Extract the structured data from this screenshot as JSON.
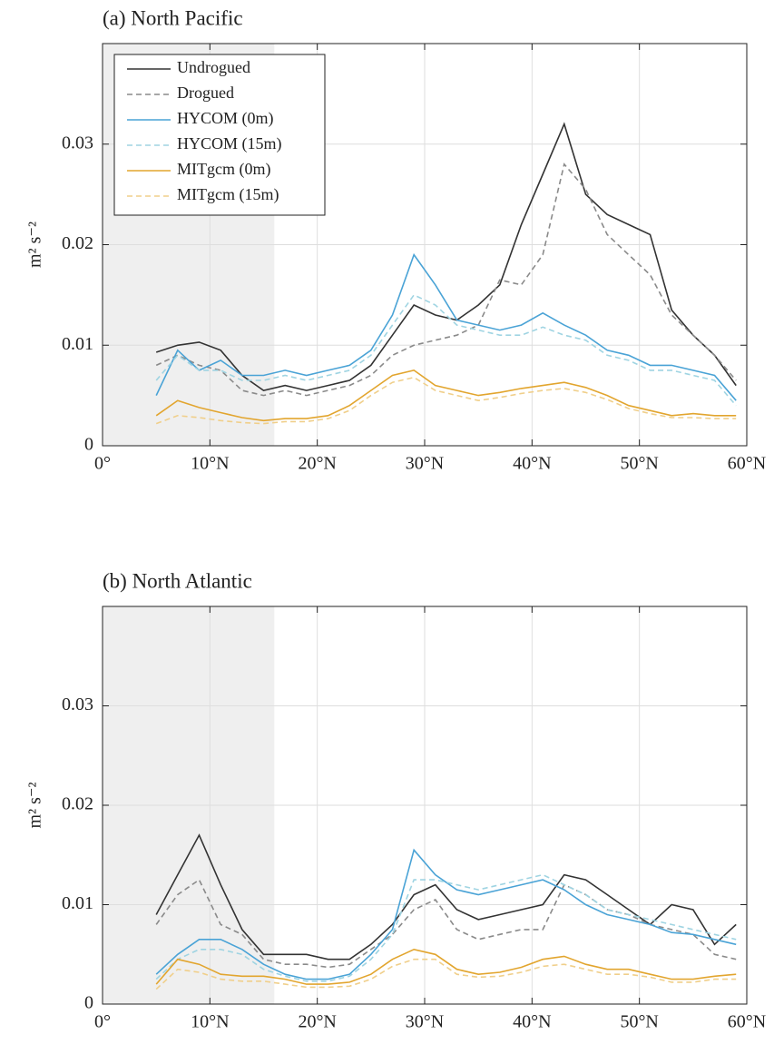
{
  "chart_data": [
    {
      "type": "line",
      "title": "(a) North Pacific",
      "ylabel": "m² s⁻²",
      "x": [
        5,
        7,
        9,
        11,
        13,
        15,
        17,
        19,
        21,
        23,
        25,
        27,
        29,
        31,
        33,
        35,
        37,
        39,
        41,
        43,
        45,
        47,
        49,
        51,
        53,
        55,
        57,
        59
      ],
      "xlim": [
        0,
        60
      ],
      "xticks": [
        {
          "value": 0,
          "label": "0°"
        },
        {
          "value": 10,
          "label": "10°N"
        },
        {
          "value": 20,
          "label": "20°N"
        },
        {
          "value": 30,
          "label": "30°N"
        },
        {
          "value": 40,
          "label": "40°N"
        },
        {
          "value": 50,
          "label": "50°N"
        },
        {
          "value": 60,
          "label": "60°N"
        }
      ],
      "ylim": [
        0,
        0.04
      ],
      "yticks": [
        0,
        0.01,
        0.02,
        0.03
      ],
      "grid": true,
      "legend": "upper left",
      "shaded_xrange": [
        0,
        16
      ],
      "series": [
        {
          "name": "Undrogued",
          "color": "#333333",
          "style": "solid",
          "values": [
            0.0093,
            0.01,
            0.0103,
            0.0095,
            0.007,
            0.0055,
            0.006,
            0.0055,
            0.006,
            0.0065,
            0.008,
            0.011,
            0.014,
            0.013,
            0.0125,
            0.014,
            0.016,
            0.022,
            0.027,
            0.032,
            0.025,
            0.023,
            0.022,
            0.021,
            0.0135,
            0.011,
            0.009,
            0.006
          ]
        },
        {
          "name": "Drogued",
          "color": "#8a8a8a",
          "style": "dashed",
          "values": [
            0.008,
            0.009,
            0.008,
            0.0075,
            0.0055,
            0.005,
            0.0055,
            0.005,
            0.0055,
            0.006,
            0.007,
            0.009,
            0.01,
            0.0105,
            0.011,
            0.012,
            0.0165,
            0.016,
            0.019,
            0.028,
            0.0255,
            0.021,
            0.019,
            0.017,
            0.013,
            0.011,
            0.009,
            0.0065
          ]
        },
        {
          "name": "HYCOM (0m)",
          "color": "#4aa3d6",
          "style": "solid",
          "values": [
            0.005,
            0.0095,
            0.0075,
            0.0085,
            0.007,
            0.007,
            0.0075,
            0.007,
            0.0075,
            0.008,
            0.0095,
            0.013,
            0.019,
            0.016,
            0.0125,
            0.012,
            0.0115,
            0.012,
            0.0132,
            0.012,
            0.011,
            0.0095,
            0.009,
            0.008,
            0.008,
            0.0075,
            0.007,
            0.0045
          ]
        },
        {
          "name": "HYCOM (15m)",
          "color": "#9fd4e2",
          "style": "dashed",
          "values": [
            0.0065,
            0.009,
            0.0075,
            0.0075,
            0.0065,
            0.0065,
            0.007,
            0.0065,
            0.007,
            0.0075,
            0.009,
            0.012,
            0.015,
            0.014,
            0.012,
            0.0115,
            0.011,
            0.011,
            0.0118,
            0.011,
            0.0105,
            0.009,
            0.0085,
            0.0075,
            0.0075,
            0.007,
            0.0065,
            0.004
          ]
        },
        {
          "name": "MITgcm (0m)",
          "color": "#e2a52e",
          "style": "solid",
          "values": [
            0.003,
            0.0045,
            0.0038,
            0.0033,
            0.0028,
            0.0025,
            0.0027,
            0.0027,
            0.003,
            0.004,
            0.0055,
            0.007,
            0.0075,
            0.006,
            0.0055,
            0.005,
            0.0053,
            0.0057,
            0.006,
            0.0063,
            0.0058,
            0.005,
            0.004,
            0.0035,
            0.003,
            0.0032,
            0.003,
            0.003
          ]
        },
        {
          "name": "MITgcm (15m)",
          "color": "#f0cf8a",
          "style": "dashed",
          "values": [
            0.0022,
            0.003,
            0.0028,
            0.0025,
            0.0023,
            0.0022,
            0.0024,
            0.0024,
            0.0027,
            0.0035,
            0.005,
            0.0063,
            0.0068,
            0.0055,
            0.005,
            0.0045,
            0.0048,
            0.0052,
            0.0055,
            0.0057,
            0.0053,
            0.0046,
            0.0037,
            0.0032,
            0.0028,
            0.0028,
            0.0027,
            0.0027
          ]
        }
      ]
    },
    {
      "type": "line",
      "title": "(b) North Atlantic",
      "ylabel": "m² s⁻²",
      "x": [
        5,
        7,
        9,
        11,
        13,
        15,
        17,
        19,
        21,
        23,
        25,
        27,
        29,
        31,
        33,
        35,
        37,
        39,
        41,
        43,
        45,
        47,
        49,
        51,
        53,
        55,
        57,
        59
      ],
      "xlim": [
        0,
        60
      ],
      "xticks": [
        {
          "value": 0,
          "label": "0°"
        },
        {
          "value": 10,
          "label": "10°N"
        },
        {
          "value": 20,
          "label": "20°N"
        },
        {
          "value": 30,
          "label": "30°N"
        },
        {
          "value": 40,
          "label": "40°N"
        },
        {
          "value": 50,
          "label": "50°N"
        },
        {
          "value": 60,
          "label": "60°N"
        }
      ],
      "ylim": [
        0,
        0.04
      ],
      "yticks": [
        0,
        0.01,
        0.02,
        0.03
      ],
      "grid": true,
      "shaded_xrange": [
        0,
        16
      ],
      "series": [
        {
          "color": "#333333",
          "style": "solid",
          "values": [
            0.009,
            0.013,
            0.017,
            0.012,
            0.0075,
            0.005,
            0.005,
            0.005,
            0.0045,
            0.0045,
            0.006,
            0.008,
            0.011,
            0.012,
            0.0095,
            0.0085,
            0.009,
            0.0095,
            0.01,
            0.013,
            0.0125,
            0.011,
            0.0095,
            0.008,
            0.01,
            0.0095,
            0.006,
            0.008
          ]
        },
        {
          "color": "#8a8a8a",
          "style": "dashed",
          "values": [
            0.008,
            0.011,
            0.0125,
            0.008,
            0.007,
            0.0045,
            0.004,
            0.004,
            0.0037,
            0.004,
            0.0055,
            0.007,
            0.0095,
            0.0105,
            0.0075,
            0.0065,
            0.007,
            0.0075,
            0.0075,
            0.012,
            0.011,
            0.0095,
            0.009,
            0.008,
            0.0075,
            0.007,
            0.005,
            0.0045
          ]
        },
        {
          "color": "#4aa3d6",
          "style": "solid",
          "values": [
            0.003,
            0.005,
            0.0065,
            0.0065,
            0.0055,
            0.004,
            0.003,
            0.0025,
            0.0025,
            0.003,
            0.005,
            0.0075,
            0.0155,
            0.013,
            0.0115,
            0.011,
            0.0115,
            0.012,
            0.0125,
            0.0115,
            0.01,
            0.009,
            0.0085,
            0.008,
            0.0072,
            0.007,
            0.0065,
            0.006
          ]
        },
        {
          "color": "#9fd4e2",
          "style": "dashed",
          "values": [
            0.0025,
            0.0045,
            0.0055,
            0.0055,
            0.005,
            0.0035,
            0.0028,
            0.0023,
            0.0023,
            0.0028,
            0.0045,
            0.007,
            0.0125,
            0.0125,
            0.012,
            0.0115,
            0.012,
            0.0125,
            0.013,
            0.012,
            0.011,
            0.0095,
            0.009,
            0.0085,
            0.008,
            0.0075,
            0.007,
            0.0065
          ]
        },
        {
          "color": "#e2a52e",
          "style": "solid",
          "values": [
            0.002,
            0.0045,
            0.004,
            0.003,
            0.0028,
            0.0028,
            0.0025,
            0.002,
            0.002,
            0.0022,
            0.003,
            0.0045,
            0.0055,
            0.005,
            0.0035,
            0.003,
            0.0032,
            0.0037,
            0.0045,
            0.0048,
            0.004,
            0.0035,
            0.0035,
            0.003,
            0.0025,
            0.0025,
            0.0028,
            0.003
          ]
        },
        {
          "color": "#f0cf8a",
          "style": "dashed",
          "values": [
            0.0015,
            0.0035,
            0.0032,
            0.0025,
            0.0023,
            0.0023,
            0.002,
            0.0017,
            0.0017,
            0.0018,
            0.0025,
            0.0038,
            0.0045,
            0.0045,
            0.003,
            0.0027,
            0.0028,
            0.0032,
            0.0038,
            0.004,
            0.0035,
            0.003,
            0.003,
            0.0027,
            0.0022,
            0.0022,
            0.0025,
            0.0025
          ]
        }
      ]
    }
  ]
}
